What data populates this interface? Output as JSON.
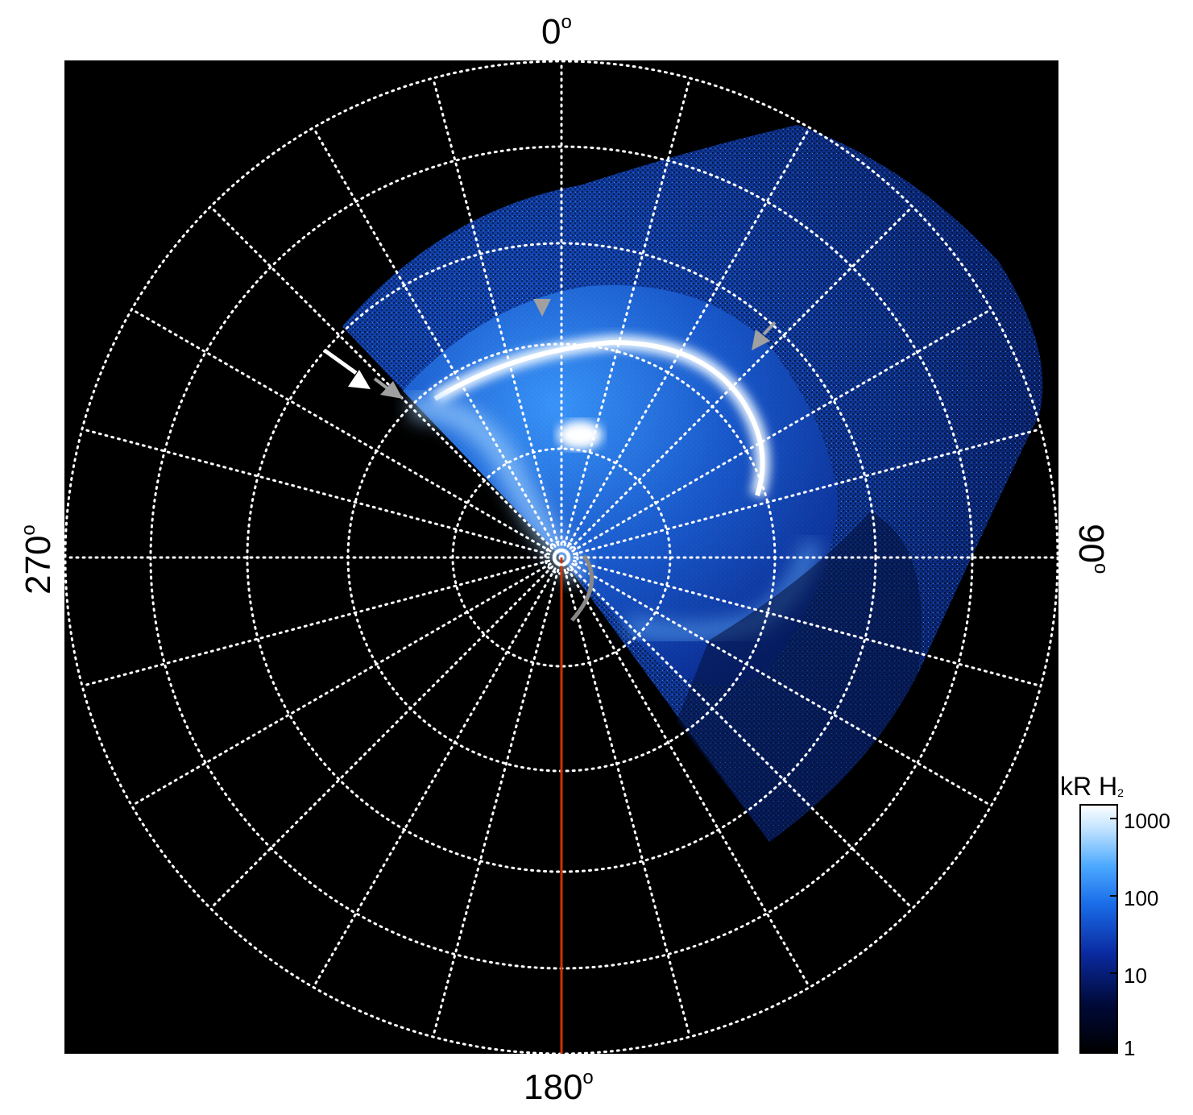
{
  "axis_labels": {
    "top": "0",
    "right": "90",
    "bottom": "180",
    "left": "270",
    "degree_symbol": "o"
  },
  "colorbar": {
    "title": "kR H",
    "title_subscript": "2",
    "ticks": [
      "1000",
      "100",
      "10",
      "1"
    ],
    "colors": [
      "#000000",
      "#000a3a",
      "#0a2aa0",
      "#1a6ce8",
      "#4aa8ff",
      "#bfe2ff",
      "#ffffff"
    ]
  },
  "colors": {
    "background": "#000000",
    "grid": "#ffffff",
    "meridian_line": "#cc3300",
    "arrow_white": "#ffffff",
    "arrow_gray": "#a0a0a0"
  }
}
